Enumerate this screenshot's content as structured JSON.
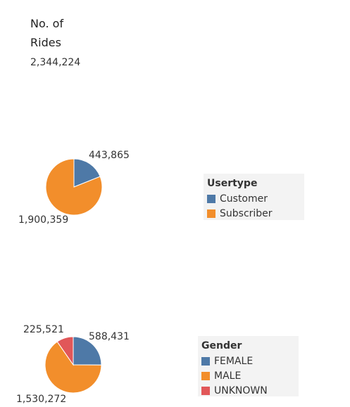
{
  "header": {
    "title_line1": "No. of",
    "title_line2": "Rides",
    "total": "2,344,224"
  },
  "chart_data": [
    {
      "type": "pie",
      "legend_title": "Usertype",
      "legend_position": "right",
      "slices": [
        {
          "label": "Customer",
          "value": 443865,
          "display": "443,865",
          "color": "#4e79a7"
        },
        {
          "label": "Subscriber",
          "value": 1900359,
          "display": "1,900,359",
          "color": "#f28e2b"
        }
      ]
    },
    {
      "type": "pie",
      "legend_title": "Gender",
      "legend_position": "right",
      "slices": [
        {
          "label": "FEMALE",
          "value": 588431,
          "display": "588,431",
          "color": "#4e79a7"
        },
        {
          "label": "MALE",
          "value": 1530272,
          "display": "1,530,272",
          "color": "#f28e2b"
        },
        {
          "label": "UNKNOWN",
          "value": 225521,
          "display": "225,521",
          "color": "#e15759"
        }
      ]
    }
  ]
}
